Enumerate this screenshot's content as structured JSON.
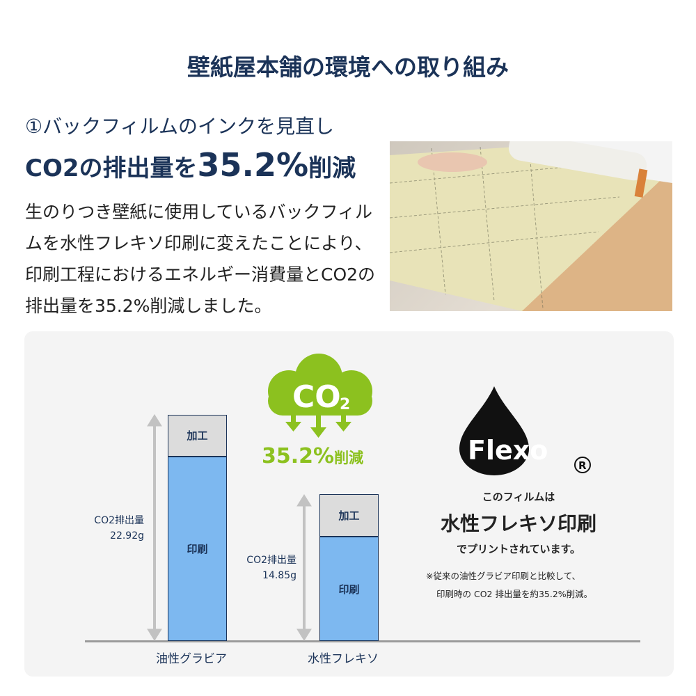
{
  "title": "壁紙屋本舗の環境への取り組み",
  "section": {
    "subtitle": "①バックフィルムのインクを見直し",
    "headline_pre": "CO2の排出量を",
    "headline_value": "35.2%",
    "headline_post": "削減",
    "body": "生のりつき壁紙に使用しているバックフィルムを水性フレキソ印刷に変えたことにより、印刷工程におけるエネルギー消費量とCO2の排出量を35.2%削減しました。"
  },
  "colors": {
    "navy": "#1b3358",
    "green": "#8cc11f",
    "print_bar": "#7db8f0",
    "process_bar": "#dcdcdc"
  },
  "cloud": {
    "label": "CO",
    "sub": "2",
    "reduction": "35.2%",
    "reduction_suffix": "削減"
  },
  "chart_data": {
    "type": "bar",
    "stacked": true,
    "categories": [
      "油性グラビア",
      "水性フレキソ"
    ],
    "series": [
      {
        "name": "印刷",
        "values": [
          18.7,
          10.55
        ]
      },
      {
        "name": "加工",
        "values": [
          4.22,
          4.3
        ]
      }
    ],
    "totals": [
      22.92,
      14.85
    ],
    "total_labels": [
      {
        "line1": "CO2排出量",
        "line2": "22.92g"
      },
      {
        "line1": "CO2排出量",
        "line2": "14.85g"
      }
    ],
    "ylim": [
      0,
      23
    ]
  },
  "flexo": {
    "logo_text": "Flexo",
    "registered": "®",
    "line1": "このフィルムは",
    "line2": "水性フレキソ印刷",
    "line3": "でプリントされています。",
    "note1": "※従来の油性グラビア印刷と比較して、",
    "note2": "印刷時の CO2 排出量を約35.2%削減。"
  }
}
